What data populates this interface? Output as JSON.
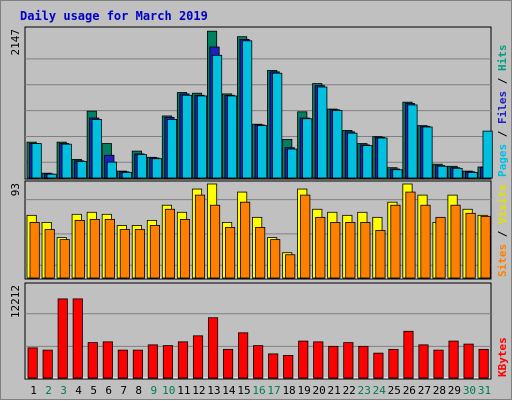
{
  "chart_data": {
    "title": "Daily usage for March 2019",
    "type": "bar",
    "days": [
      "1",
      "2",
      "3",
      "4",
      "5",
      "6",
      "7",
      "8",
      "9",
      "10",
      "11",
      "12",
      "13",
      "14",
      "15",
      "16",
      "17",
      "18",
      "19",
      "20",
      "21",
      "22",
      "23",
      "24",
      "25",
      "26",
      "27",
      "28",
      "29",
      "30",
      "31"
    ],
    "weekend_days": [
      "2",
      "3",
      "9",
      "10",
      "16",
      "17",
      "23",
      "24",
      "30",
      "31"
    ],
    "colors": {
      "hits": "#00c0c0",
      "files": "#2020c0",
      "pages": "#00c0e0",
      "visits": "#ffff00",
      "sites": "#ff8000",
      "kbytes": "#ff0000",
      "background": "#c0c0c0",
      "title": "#0000c8",
      "weekday_label": "#000000",
      "weekend_label": "#007a50"
    },
    "panels": [
      {
        "id": "hits",
        "max_label": "2147",
        "ymax": 2147,
        "side_labels": [
          {
            "text": "Pages",
            "color": "#00c0e0"
          },
          {
            "text": " / ",
            "color": "#000000"
          },
          {
            "text": "Files",
            "color": "#2020c0"
          },
          {
            "text": " / ",
            "color": "#000000"
          },
          {
            "text": "Hits",
            "color": "#00a080"
          }
        ],
        "series": [
          {
            "name": "Hits",
            "color": "#008060",
            "values": [
              520,
              70,
              520,
              270,
              970,
              500,
              100,
              390,
              300,
              900,
              1240,
              1230,
              2130,
              1220,
              2050,
              780,
              1560,
              560,
              960,
              1370,
              1000,
              690,
              500,
              600,
              150,
              1100,
              760,
              200,
              170,
              100,
              160
            ]
          },
          {
            "name": "Files",
            "color": "#2020c0",
            "values": [
              500,
              60,
              500,
              250,
              870,
              330,
              90,
              350,
              290,
              880,
              1220,
              1200,
              1900,
              1200,
              2010,
              770,
              1540,
              440,
              870,
              1340,
              990,
              670,
              480,
              590,
              130,
              1080,
              750,
              180,
              150,
              90,
              150
            ]
          },
          {
            "name": "Pages",
            "color": "#00c0e0",
            "values": [
              500,
              55,
              490,
              240,
              850,
              230,
              80,
              340,
              280,
              850,
              1200,
              1190,
              1780,
              1190,
              1990,
              760,
              1520,
              420,
              860,
              1320,
              980,
              650,
              470,
              580,
              120,
              1060,
              740,
              170,
              140,
              80,
              680
            ]
          }
        ]
      },
      {
        "id": "visits",
        "max_label": "93",
        "ymax": 93,
        "side_labels": [
          {
            "text": "Sites",
            "color": "#ff8000"
          },
          {
            "text": " / ",
            "color": "#000000"
          },
          {
            "text": "Visits",
            "color": "#e0e000"
          }
        ],
        "series": [
          {
            "name": "Visits",
            "color": "#ffff00",
            "values": [
              62,
              55,
              40,
              63,
              65,
              63,
              52,
              52,
              57,
              72,
              65,
              88,
              93,
              55,
              85,
              60,
              40,
              25,
              88,
              68,
              65,
              62,
              65,
              60,
              75,
              93,
              82,
              55,
              82,
              68,
              62
            ]
          },
          {
            "name": "Sites",
            "color": "#ff8000",
            "values": [
              55,
              48,
              38,
              57,
              58,
              58,
              48,
              48,
              52,
              68,
              58,
              82,
              72,
              50,
              75,
              50,
              38,
              23,
              82,
              60,
              55,
              55,
              55,
              47,
              72,
              85,
              72,
              60,
              72,
              64,
              61
            ]
          }
        ]
      },
      {
        "id": "kbytes",
        "max_label": "12212",
        "ymax": 12212,
        "side_labels": [
          {
            "text": "KBytes",
            "color": "#ff0000"
          }
        ],
        "series": [
          {
            "name": "KBytes",
            "color": "#ff0000",
            "values": [
              4000,
              3700,
              10500,
              10500,
              4700,
              4800,
              3700,
              3700,
              4400,
              4300,
              4800,
              5600,
              8000,
              3800,
              6000,
              4300,
              3200,
              3000,
              4900,
              4800,
              4200,
              4700,
              4200,
              3300,
              3800,
              6200,
              4400,
              3700,
              4900,
              4500,
              3800
            ]
          }
        ]
      }
    ]
  }
}
